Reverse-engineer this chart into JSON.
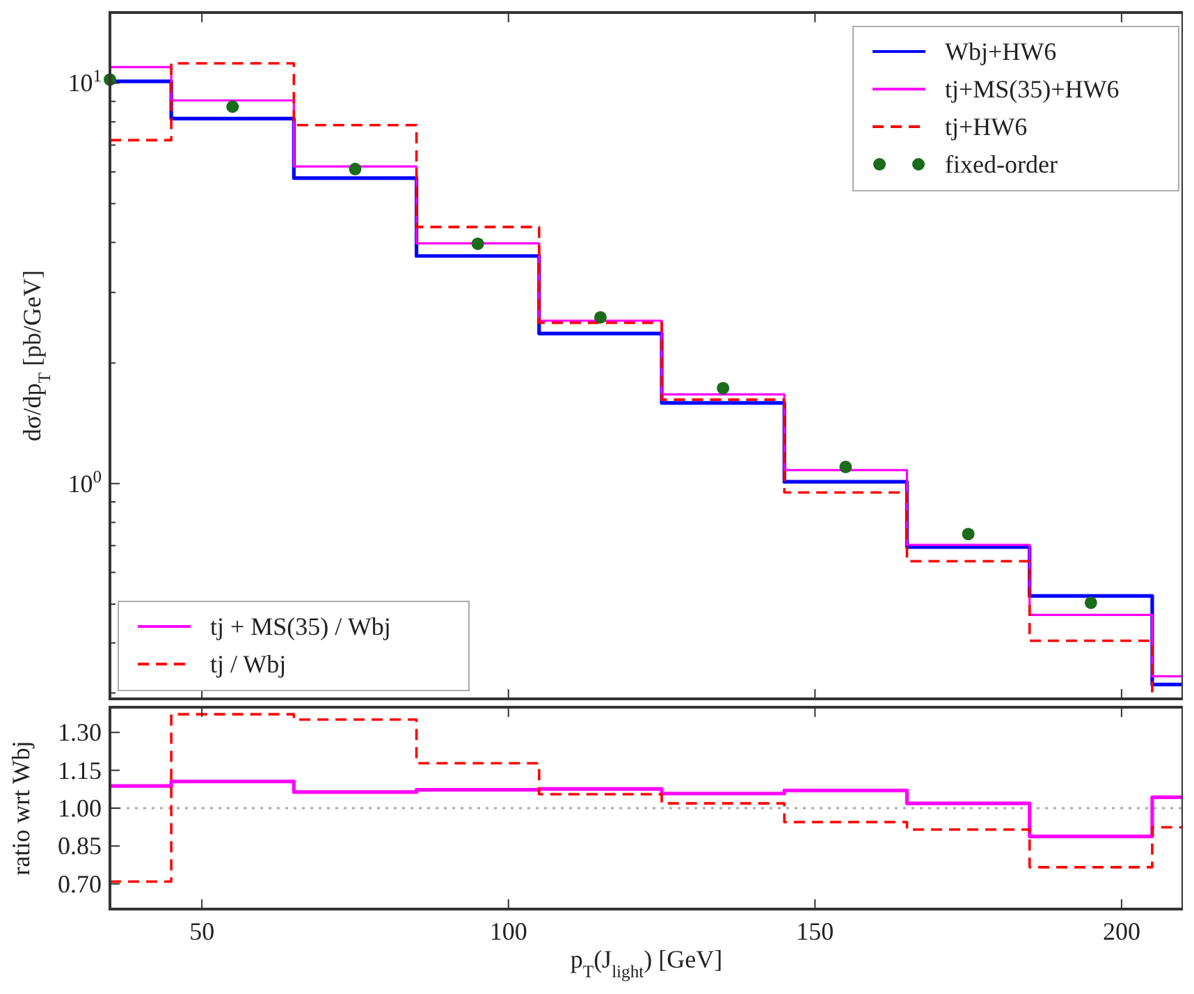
{
  "chart_data": [
    {
      "type": "histogram",
      "ylabel": "dσ/dp$_{T}$ [pb/GeV]",
      "bins": [
        35,
        45,
        65,
        85,
        105,
        125,
        145,
        165,
        185,
        205,
        210
      ],
      "xlim": [
        35,
        210
      ],
      "xticks": [
        {
          "value": 50,
          "label": null
        },
        {
          "value": 100,
          "label": null
        },
        {
          "value": 150,
          "label": null
        },
        {
          "value": 200,
          "label": null
        }
      ],
      "ylim": [
        0.29,
        15
      ],
      "log": "y",
      "yticks": [
        {
          "value": 0.3,
          "label": null
        },
        {
          "value": 0.4,
          "label": null
        },
        {
          "value": 0.5,
          "label": null
        },
        {
          "value": 0.6,
          "label": null
        },
        {
          "value": 0.7,
          "label": null
        },
        {
          "value": 0.8,
          "label": null
        },
        {
          "value": 0.9,
          "label": null
        },
        {
          "value": 1,
          "label": "10$^{0}$"
        },
        {
          "value": 2,
          "label": null
        },
        {
          "value": 3,
          "label": null
        },
        {
          "value": 4,
          "label": null
        },
        {
          "value": 5,
          "label": null
        },
        {
          "value": 6,
          "label": null
        },
        {
          "value": 7,
          "label": null
        },
        {
          "value": 8,
          "label": null
        },
        {
          "value": 9,
          "label": null
        },
        {
          "value": 10,
          "label": "10$^{1}$"
        }
      ],
      "tick_labels": "y",
      "legend": "top right",
      "series": [
        {
          "name": "Wbj+HW6",
          "color": "#0000ff",
          "line_style": "solid",
          "values": [
            10.1,
            8.15,
            5.79,
            3.7,
            2.37,
            1.59,
            1.01,
            0.694,
            0.524,
            0.315
          ]
        },
        {
          "name": "tj+MS(35)+HW6",
          "color": "#ff00ff",
          "line_style": "solid",
          "values": [
            10.96,
            9.05,
            6.19,
            3.98,
            2.55,
            1.67,
            1.08,
            0.703,
            0.47,
            0.33
          ]
        },
        {
          "name": "tj+HW6",
          "color": "#ff0000",
          "line_style": "dashed",
          "values": [
            7.2,
            11.2,
            7.85,
            4.37,
            2.52,
            1.62,
            0.95,
            0.64,
            0.405,
            0.29
          ]
        },
        {
          "name": "fixed-order",
          "type": "scatter",
          "color": "#1a6b1a",
          "marker": "circle",
          "x": [
            35,
            55,
            75,
            95,
            115,
            135,
            155,
            175,
            195
          ],
          "values": [
            10.2,
            8.73,
            6.1,
            3.97,
            2.6,
            1.73,
            1.1,
            0.748,
            0.504
          ]
        }
      ]
    },
    {
      "type": "histogram",
      "xlabel": "p$_{T}$(J$_{light}$) [GeV]",
      "ylabel": "ratio wrt Wbj",
      "bins": [
        35,
        45,
        65,
        85,
        105,
        125,
        145,
        165,
        185,
        205,
        210
      ],
      "xlim": [
        35,
        210
      ],
      "xticks": [
        50,
        100,
        150,
        200
      ],
      "ylim": [
        0.6,
        1.4
      ],
      "yticks": [
        {
          "value": 0.7,
          "label": "0.70"
        },
        {
          "value": 0.85,
          "label": "0.85"
        },
        {
          "value": 1,
          "label": "1.00"
        },
        {
          "value": 1.15,
          "label": "1.15"
        },
        {
          "value": 1.3,
          "label": "1.30"
        }
      ],
      "legend": "top left",
      "ref_lines": [
        {
          "axis": "y",
          "value": 1,
          "color": "#aaaaaa",
          "line_style": "dotted"
        }
      ],
      "series": [
        {
          "name": "tj + MS(35) / Wbj",
          "color": "#ff00ff",
          "line_style": "solid",
          "values": [
            1.088,
            1.106,
            1.064,
            1.073,
            1.076,
            1.058,
            1.07,
            1.019,
            0.888,
            1.043
          ]
        },
        {
          "name": "tj / Wbj",
          "color": "#ff0000",
          "line_style": "dashed",
          "values": [
            0.709,
            1.372,
            1.351,
            1.178,
            1.055,
            1.019,
            0.945,
            0.915,
            0.766,
            0.924
          ]
        }
      ]
    }
  ]
}
